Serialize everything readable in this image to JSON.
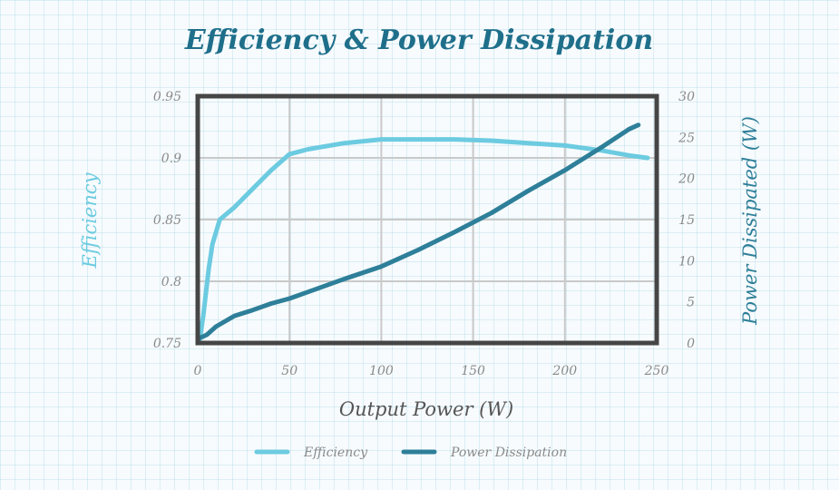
{
  "chart_data": {
    "type": "line",
    "title": "Efficiency & Power Dissipation",
    "xlabel": "Output Power (W)",
    "ylabel_left": "Efficiency",
    "ylabel_right": "Power Dissipated (W)",
    "xlim": [
      0,
      250
    ],
    "ylim_left": [
      0.75,
      0.95
    ],
    "ylim_right": [
      0,
      30
    ],
    "xticks": [
      "0",
      "50",
      "100",
      "150",
      "200",
      "250"
    ],
    "yticks_left": [
      "0.75",
      "0.8",
      "0.85",
      "0.9",
      "0.95"
    ],
    "yticks_right": [
      "0",
      "5",
      "10",
      "15",
      "20",
      "25",
      "30"
    ],
    "grid": true,
    "legend_position": "bottom",
    "series": [
      {
        "name": "Efficiency",
        "axis": "left",
        "color": "#6ccbe0",
        "x": [
          1,
          3,
          6,
          8,
          12,
          20,
          30,
          40,
          50,
          60,
          80,
          100,
          120,
          140,
          160,
          180,
          200,
          220,
          235,
          245
        ],
        "y": [
          0.752,
          0.772,
          0.81,
          0.83,
          0.85,
          0.86,
          0.875,
          0.89,
          0.903,
          0.907,
          0.912,
          0.915,
          0.915,
          0.915,
          0.914,
          0.912,
          0.91,
          0.906,
          0.902,
          0.9
        ]
      },
      {
        "name": "Power Dissipation",
        "axis": "right",
        "color": "#2e7f99",
        "x": [
          1,
          5,
          10,
          20,
          30,
          40,
          50,
          60,
          80,
          100,
          120,
          140,
          160,
          180,
          200,
          220,
          235,
          240
        ],
        "y": [
          0.6,
          1.0,
          2.0,
          3.3,
          4.0,
          4.8,
          5.4,
          6.2,
          7.8,
          9.3,
          11.3,
          13.5,
          15.8,
          18.5,
          21.0,
          23.8,
          26.0,
          26.5
        ]
      }
    ]
  },
  "colors": {
    "title": "#1f6f8b",
    "efficiency": "#6ccbe0",
    "power": "#2e7f99",
    "frame": "#454545",
    "grid": "#c9c9c9",
    "tick_text": "#8a8a8a",
    "xlabel": "#555555"
  }
}
